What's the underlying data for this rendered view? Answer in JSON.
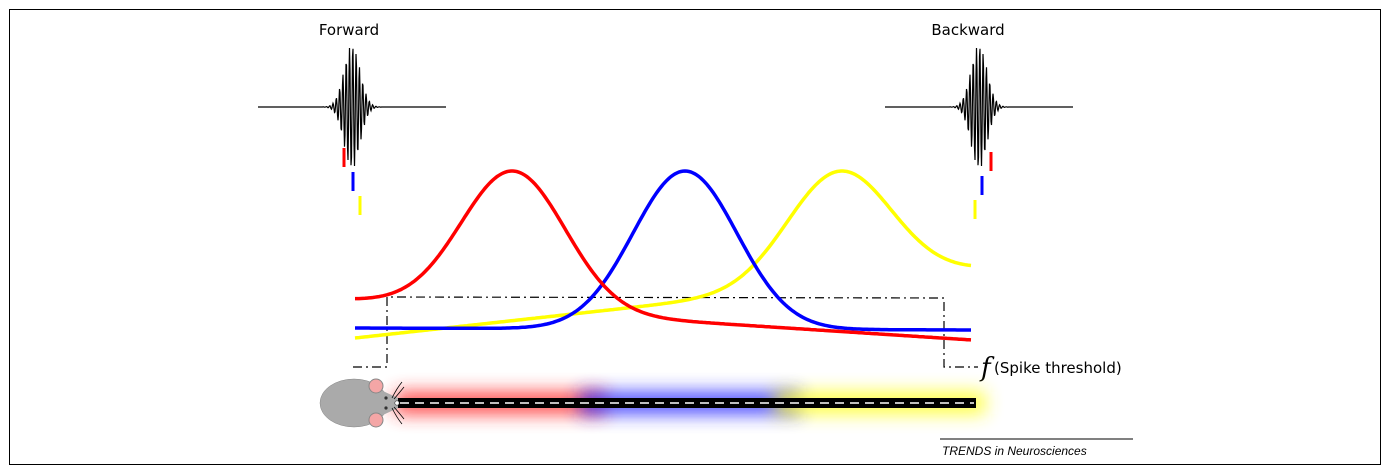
{
  "labels": {
    "forward": "Forward",
    "backward": "Backward",
    "threshold_func": "f",
    "threshold_text": "(Spike threshold)",
    "journal": "TRENDS in Neurosciences"
  },
  "colors": {
    "cell_1": "#ff0000",
    "cell_2": "#0000ff",
    "cell_3": "#ffff00",
    "mouse": "#aaaaaa",
    "ear": "#f4a6a6",
    "track": "#000000"
  },
  "icons": {
    "mouse": "mouse-icon",
    "ripple": "sharp-wave-ripple-icon"
  }
}
